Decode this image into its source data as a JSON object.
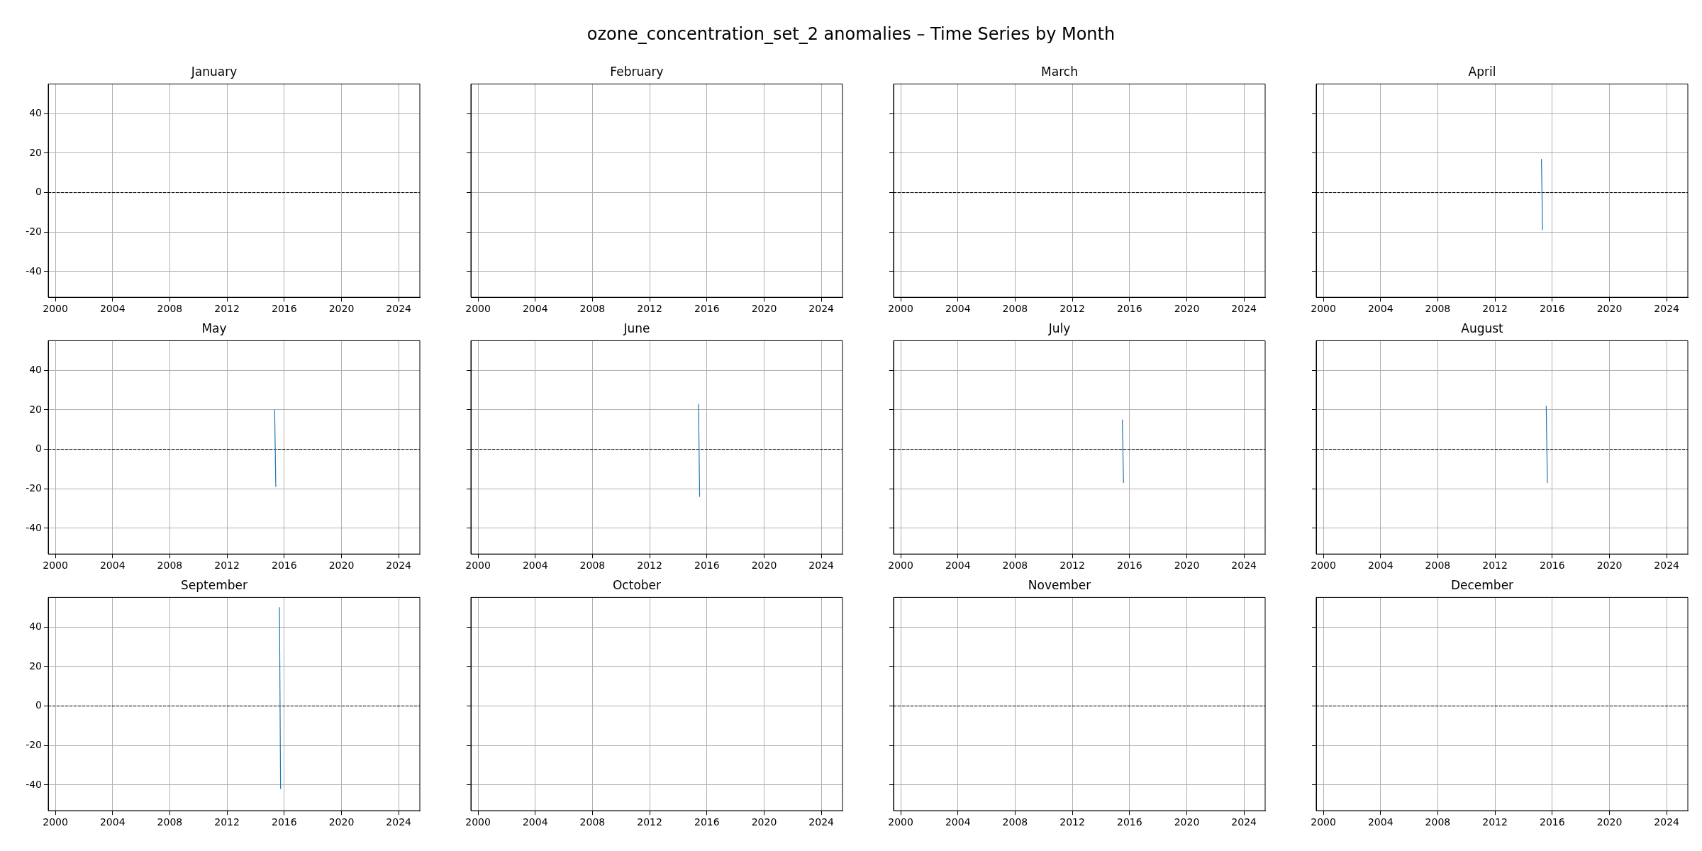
{
  "chart_data": [
    {
      "type": "line",
      "title": "January",
      "annotations": [
        "ozone_concentration_set_2 anomalies – Time Series by Month"
      ],
      "xlim": [
        "1999-07-03",
        "2025-06-25"
      ],
      "xticks": [
        "2000",
        "2004",
        "2008",
        "2012",
        "2016",
        "2020",
        "2024"
      ],
      "ylim": [
        -53,
        55
      ],
      "yticks": [
        -40,
        -20,
        0,
        20,
        40
      ],
      "grid": true,
      "ref_lines": [
        {
          "axis": "y",
          "value": 0,
          "color": "#000000",
          "line_style": "dashed"
        }
      ]
    },
    {
      "type": "line",
      "title": "February",
      "xlim": [
        "1999-07-03",
        "2025-06-25"
      ],
      "xticks": [
        "2000",
        "2004",
        "2008",
        "2012",
        "2016",
        "2020",
        "2024"
      ],
      "ylim": [
        -53,
        55
      ],
      "yticks": [
        -40,
        -20,
        0,
        20,
        40
      ],
      "grid": true,
      "tick_labels": "x"
    },
    {
      "type": "line",
      "title": "March",
      "xlim": [
        "1999-07-03",
        "2025-06-25"
      ],
      "xticks": [
        "2000",
        "2004",
        "2008",
        "2012",
        "2016",
        "2020",
        "2024"
      ],
      "ylim": [
        -53,
        55
      ],
      "yticks": [
        -40,
        -20,
        0,
        20,
        40
      ],
      "grid": true,
      "tick_labels": "x",
      "ref_lines": [
        {
          "axis": "y",
          "value": 0,
          "color": "#000000",
          "line_style": "dashed"
        }
      ]
    },
    {
      "type": "line",
      "title": "April",
      "series": [
        {
          "color": "#1f77b4",
          "x": [
            "2015-04-01",
            "2015-04-30"
          ],
          "values": [
            17,
            -19
          ]
        }
      ],
      "xlim": [
        "1999-07-03",
        "2025-06-25"
      ],
      "xticks": [
        "2000",
        "2004",
        "2008",
        "2012",
        "2016",
        "2020",
        "2024"
      ],
      "ylim": [
        -53,
        55
      ],
      "yticks": [
        -40,
        -20,
        0,
        20,
        40
      ],
      "grid": true,
      "tick_labels": "x",
      "ref_lines": [
        {
          "axis": "y",
          "value": 0,
          "color": "#000000",
          "line_style": "dashed"
        }
      ]
    },
    {
      "type": "line",
      "title": "May",
      "series": [
        {
          "color": "#1f77b4",
          "x": [
            "2015-05-01",
            "2015-05-31"
          ],
          "values": [
            20,
            -19
          ]
        }
      ],
      "xlim": [
        "1999-07-03",
        "2025-06-25"
      ],
      "xticks": [
        "2000",
        "2004",
        "2008",
        "2012",
        "2016",
        "2020",
        "2024"
      ],
      "ylim": [
        -53,
        55
      ],
      "yticks": [
        -40,
        -20,
        0,
        20,
        40
      ],
      "grid": true,
      "ref_lines": [
        {
          "axis": "y",
          "value": 0,
          "color": "#000000",
          "line_style": "dashed"
        }
      ]
    },
    {
      "type": "line",
      "title": "June",
      "series": [
        {
          "color": "#1f77b4",
          "x": [
            "2015-06-01",
            "2015-06-30"
          ],
          "values": [
            23,
            -24
          ]
        }
      ],
      "xlim": [
        "1999-07-03",
        "2025-06-25"
      ],
      "xticks": [
        "2000",
        "2004",
        "2008",
        "2012",
        "2016",
        "2020",
        "2024"
      ],
      "ylim": [
        -53,
        55
      ],
      "yticks": [
        -40,
        -20,
        0,
        20,
        40
      ],
      "grid": true,
      "tick_labels": "x",
      "ref_lines": [
        {
          "axis": "y",
          "value": 0,
          "color": "#000000",
          "line_style": "dashed"
        }
      ]
    },
    {
      "type": "line",
      "title": "July",
      "series": [
        {
          "color": "#1f77b4",
          "x": [
            "2015-07-01",
            "2015-07-31"
          ],
          "values": [
            15,
            -17
          ]
        }
      ],
      "xlim": [
        "1999-07-03",
        "2025-06-25"
      ],
      "xticks": [
        "2000",
        "2004",
        "2008",
        "2012",
        "2016",
        "2020",
        "2024"
      ],
      "ylim": [
        -53,
        55
      ],
      "yticks": [
        -40,
        -20,
        0,
        20,
        40
      ],
      "grid": true,
      "tick_labels": "x",
      "ref_lines": [
        {
          "axis": "y",
          "value": 0,
          "color": "#000000",
          "line_style": "dashed"
        }
      ]
    },
    {
      "type": "line",
      "title": "August",
      "series": [
        {
          "color": "#1f77b4",
          "x": [
            "2015-08-01",
            "2015-08-31"
          ],
          "values": [
            22,
            -17
          ]
        }
      ],
      "xlim": [
        "1999-07-03",
        "2025-06-25"
      ],
      "xticks": [
        "2000",
        "2004",
        "2008",
        "2012",
        "2016",
        "2020",
        "2024"
      ],
      "ylim": [
        -53,
        55
      ],
      "yticks": [
        -40,
        -20,
        0,
        20,
        40
      ],
      "grid": true,
      "tick_labels": "x",
      "ref_lines": [
        {
          "axis": "y",
          "value": 0,
          "color": "#000000",
          "line_style": "dashed"
        }
      ]
    },
    {
      "type": "line",
      "title": "September",
      "series": [
        {
          "color": "#1f77b4",
          "x": [
            "2015-09-01",
            "2015-09-30"
          ],
          "values": [
            50,
            -42
          ]
        }
      ],
      "xlim": [
        "1999-07-03",
        "2025-06-25"
      ],
      "xticks": [
        "2000",
        "2004",
        "2008",
        "2012",
        "2016",
        "2020",
        "2024"
      ],
      "ylim": [
        -53,
        55
      ],
      "yticks": [
        -40,
        -20,
        0,
        20,
        40
      ],
      "grid": true,
      "ref_lines": [
        {
          "axis": "y",
          "value": 0,
          "color": "#000000",
          "line_style": "dashed"
        }
      ]
    },
    {
      "type": "line",
      "title": "October",
      "xlim": [
        "1999-07-03",
        "2025-06-25"
      ],
      "xticks": [
        "2000",
        "2004",
        "2008",
        "2012",
        "2016",
        "2020",
        "2024"
      ],
      "ylim": [
        -53,
        55
      ],
      "yticks": [
        -40,
        -20,
        0,
        20,
        40
      ],
      "grid": true,
      "tick_labels": "x"
    },
    {
      "type": "line",
      "title": "November",
      "xlim": [
        "1999-07-03",
        "2025-06-25"
      ],
      "xticks": [
        "2000",
        "2004",
        "2008",
        "2012",
        "2016",
        "2020",
        "2024"
      ],
      "ylim": [
        -53,
        55
      ],
      "yticks": [
        -40,
        -20,
        0,
        20,
        40
      ],
      "grid": true,
      "tick_labels": "x",
      "ref_lines": [
        {
          "axis": "y",
          "value": 0,
          "color": "#000000",
          "line_style": "dashed"
        }
      ]
    },
    {
      "type": "line",
      "title": "December",
      "xlim": [
        "1999-07-03",
        "2025-06-25"
      ],
      "xticks": [
        "2000",
        "2004",
        "2008",
        "2012",
        "2016",
        "2020",
        "2024"
      ],
      "ylim": [
        -53,
        55
      ],
      "yticks": [
        -40,
        -20,
        0,
        20,
        40
      ],
      "grid": true,
      "tick_labels": "x",
      "ref_lines": [
        {
          "axis": "y",
          "value": 0,
          "color": "#000000",
          "line_style": "dashed"
        }
      ]
    }
  ]
}
